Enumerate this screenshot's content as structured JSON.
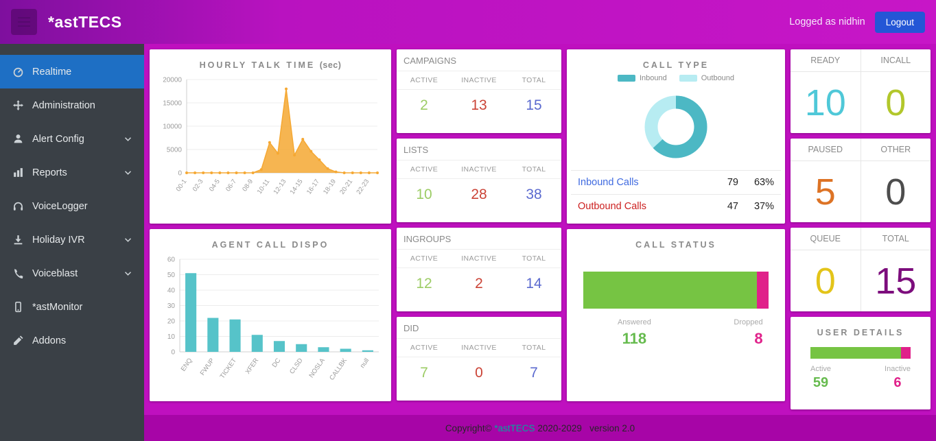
{
  "header": {
    "brand": "*astTECS",
    "logged_as": "Logged as nidhin",
    "logout_label": "Logout"
  },
  "sidebar": {
    "items": [
      {
        "label": "Realtime",
        "icon": "dashboard-icon",
        "active": true,
        "expandable": false
      },
      {
        "label": "Administration",
        "icon": "move-icon",
        "active": false,
        "expandable": false
      },
      {
        "label": "Alert Config",
        "icon": "user-icon",
        "active": false,
        "expandable": true
      },
      {
        "label": "Reports",
        "icon": "bar-chart-icon",
        "active": false,
        "expandable": true
      },
      {
        "label": "VoiceLogger",
        "icon": "headphones-icon",
        "active": false,
        "expandable": false
      },
      {
        "label": "Holiday IVR",
        "icon": "download-icon",
        "active": false,
        "expandable": true
      },
      {
        "label": "Voiceblast",
        "icon": "phone-icon",
        "active": false,
        "expandable": true
      },
      {
        "label": "*astMonitor",
        "icon": "mobile-icon",
        "active": false,
        "expandable": false
      },
      {
        "label": "Addons",
        "icon": "edit-icon",
        "active": false,
        "expandable": false
      }
    ]
  },
  "stat_tables": [
    {
      "title": "CAMPAIGNS",
      "headers": [
        "ACTIVE",
        "INACTIVE",
        "TOTAL"
      ],
      "active": "2",
      "inactive": "13",
      "total": "15"
    },
    {
      "title": "LISTS",
      "headers": [
        "ACTIVE",
        "INACTIVE",
        "TOTAL"
      ],
      "active": "10",
      "inactive": "28",
      "total": "38"
    },
    {
      "title": "INGROUPS",
      "headers": [
        "ACTIVE",
        "INACTIVE",
        "TOTAL"
      ],
      "active": "12",
      "inactive": "2",
      "total": "14"
    },
    {
      "title": "DID",
      "headers": [
        "ACTIVE",
        "INACTIVE",
        "TOTAL"
      ],
      "active": "7",
      "inactive": "0",
      "total": "7"
    }
  ],
  "call_type": {
    "title": "CALL TYPE",
    "legend": [
      {
        "label": "Inbound",
        "color": "#4cb8c4"
      },
      {
        "label": "Outbound",
        "color": "#b7ecf2"
      }
    ],
    "rows": [
      {
        "label": "Inbound Calls",
        "count": "79",
        "pct": "63%"
      },
      {
        "label": "Outbound Calls",
        "count": "47",
        "pct": "37%"
      }
    ]
  },
  "call_status": {
    "title": "CALL STATUS",
    "answered_label": "Answered",
    "answered": 118,
    "dropped_label": "Dropped",
    "dropped": 8
  },
  "agent_stats": [
    {
      "label": "READY",
      "value": "10",
      "color": "#4fc8d8"
    },
    {
      "label": "INCALL",
      "value": "0",
      "color": "#b2c72b"
    },
    {
      "label": "PAUSED",
      "value": "5",
      "color": "#dd7325"
    },
    {
      "label": "OTHER",
      "value": "0",
      "color": "#4d4d4d"
    },
    {
      "label": "QUEUE",
      "value": "0",
      "color": "#e3c419"
    },
    {
      "label": "TOTAL",
      "value": "15",
      "color": "#7c0d7c"
    }
  ],
  "user_details": {
    "title": "USER DETAILS",
    "active_label": "Active",
    "active": 59,
    "inactive_label": "Inactive",
    "inactive": 6
  },
  "footer": {
    "copyright": "Copyright© ",
    "brand": "*astTECS",
    "rest": " 2020-2029   version 2.0"
  },
  "colors": {
    "header_magenta": "#c716c7",
    "main_bg": "#bf10bf",
    "footer_bg": "#a705a7",
    "sidebar_bg": "#3a4046",
    "active_item_blue": "#1e6fc4",
    "logout_blue": "#2456d6",
    "active_green": "#9ccc65",
    "inactive_red": "#cb4437",
    "total_blue": "#5b6acf",
    "answered_green": "#76c443",
    "dropped_pink": "#e0218a"
  },
  "chart_data": [
    {
      "type": "area",
      "title": "HOURLY TALK TIME",
      "title_suffix": "(sec)",
      "ylim": [
        0,
        20000
      ],
      "yticks": [
        0,
        5000,
        10000,
        15000,
        20000
      ],
      "tick_labels": [
        "00-1",
        "02-3",
        "04-5",
        "06-7",
        "08-9",
        "10-11",
        "12-13",
        "14-15",
        "16-17",
        "18-19",
        "20-21",
        "22-23"
      ],
      "values": [
        0,
        0,
        0,
        0,
        0,
        0,
        0,
        0,
        0,
        700,
        6500,
        4200,
        18000,
        3800,
        7200,
        4600,
        2800,
        900,
        200,
        0,
        0,
        0,
        0,
        0
      ],
      "color": "#f5a833",
      "grid": true,
      "legend": "none"
    },
    {
      "type": "bar",
      "title": "AGENT CALL DISPO",
      "categories": [
        "ENQ",
        "FWUP",
        "TICKET",
        "XFER",
        "DC",
        "CLSD",
        "NOSLA",
        "CALLBK",
        "null"
      ],
      "values": [
        51,
        22,
        21,
        11,
        7,
        5,
        3,
        2,
        1
      ],
      "ylim": [
        0,
        60
      ],
      "yticks": [
        0,
        10,
        20,
        30,
        40,
        50,
        60
      ],
      "color": "#56c3c9",
      "grid": true,
      "legend": "none"
    },
    {
      "type": "pie",
      "title": "CALL TYPE",
      "labels": [
        "Inbound",
        "Outbound"
      ],
      "values": [
        63,
        37
      ],
      "colors": [
        "#4cb8c4",
        "#b7ecf2"
      ],
      "legend": "top"
    },
    {
      "type": "bar",
      "title": "CALL STATUS",
      "categories": [
        "Answered",
        "Dropped"
      ],
      "values": [
        118,
        8
      ],
      "colors": [
        "#76c443",
        "#e0218a"
      ]
    },
    {
      "type": "bar",
      "title": "USER DETAILS",
      "categories": [
        "Active",
        "Inactive"
      ],
      "values": [
        59,
        6
      ],
      "colors": [
        "#76c443",
        "#e0218a"
      ]
    }
  ]
}
